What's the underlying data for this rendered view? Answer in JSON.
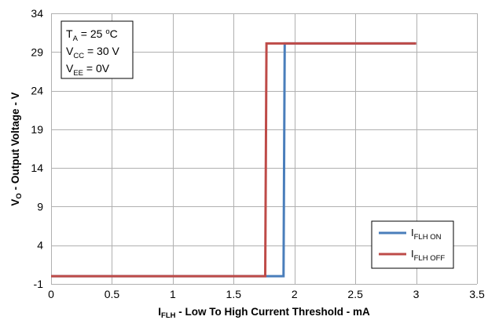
{
  "chart_data": {
    "type": "line",
    "x_axis": {
      "title_main": "I",
      "title_sub": "FLH",
      "title_rest": " - Low To High Current Threshold - mA",
      "min": 0,
      "max": 3.5,
      "ticks": [
        0,
        0.5,
        1,
        1.5,
        2,
        2.5,
        3,
        3.5
      ],
      "tick_labels": [
        "0",
        "0.5",
        "1",
        "1.5",
        "2",
        "2.5",
        "3",
        "3.5"
      ]
    },
    "y_axis": {
      "title_main": "V",
      "title_sub": "O",
      "title_rest": " - Output Voltage - V",
      "min": -1,
      "max": 34,
      "ticks": [
        -1,
        4,
        9,
        14,
        19,
        24,
        29,
        34
      ],
      "tick_labels": [
        "-1",
        "4",
        "9",
        "14",
        "19",
        "24",
        "29",
        "34"
      ]
    },
    "grid": true,
    "legend_position": "bottom-right",
    "conditions": [
      {
        "main": "T",
        "sub": "A",
        "rest1": " = 25 ",
        "sup": "o",
        "rest2": "C"
      },
      {
        "main": "V",
        "sub": "CC",
        "rest1": " = 30 V",
        "sup": "",
        "rest2": ""
      },
      {
        "main": "V",
        "sub": "EE",
        "rest1": " = 0V",
        "sup": "",
        "rest2": ""
      }
    ],
    "series": [
      {
        "name_main": "I",
        "name_sub": "FLH ON",
        "color": "#4a7ebb",
        "points": [
          [
            0,
            0
          ],
          [
            1.91,
            0
          ],
          [
            1.92,
            30.1
          ],
          [
            3.0,
            30.1
          ]
        ]
      },
      {
        "name_main": "I",
        "name_sub": "FLH OFF",
        "color": "#be4b48",
        "points": [
          [
            0,
            0
          ],
          [
            1.76,
            0
          ],
          [
            1.77,
            30.1
          ],
          [
            3.0,
            30.1
          ]
        ]
      }
    ]
  }
}
